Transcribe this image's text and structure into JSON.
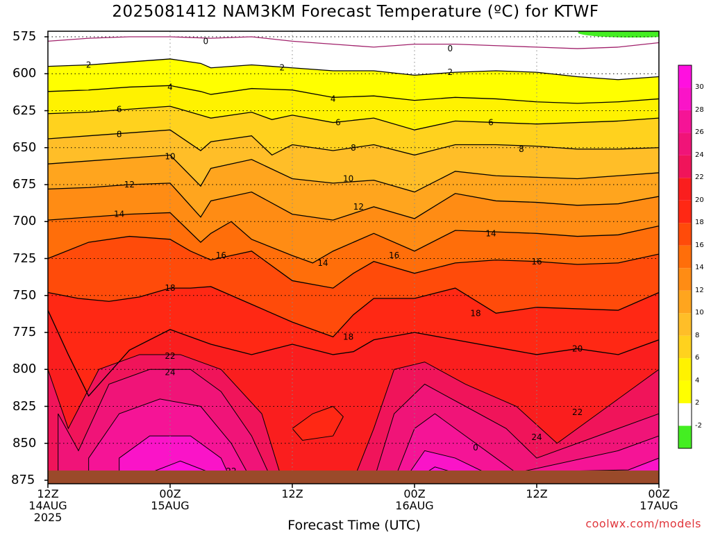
{
  "title": "2025081412 NAM3KM Forecast Temperature (ºC) for KTWF",
  "credit": "coolwx.com/models",
  "chart_data": {
    "type": "heatmap",
    "title": "2025081412 NAM3KM Forecast Temperature (ºC) for KTWF",
    "xlabel": "Forecast Time (UTC)",
    "ylabel": "",
    "y_scale": "pressure (hPa), inverted",
    "ylim": [
      875,
      570
    ],
    "xlim_hours": [
      0,
      60
    ],
    "grid": true,
    "y_ticks": [
      "575",
      "600",
      "625",
      "650",
      "675",
      "700",
      "725",
      "750",
      "775",
      "800",
      "825",
      "850",
      "875"
    ],
    "x_ticks": [
      {
        "hour": 0,
        "lines": [
          "12Z",
          "14AUG",
          "2025"
        ]
      },
      {
        "hour": 12,
        "lines": [
          "00Z",
          "15AUG"
        ]
      },
      {
        "hour": 24,
        "lines": [
          "12Z"
        ]
      },
      {
        "hour": 36,
        "lines": [
          "00Z",
          "16AUG"
        ]
      },
      {
        "hour": 48,
        "lines": [
          "12Z"
        ]
      },
      {
        "hour": 60,
        "lines": [
          "00Z",
          "17AUG"
        ]
      }
    ],
    "colorbar": {
      "levels": [
        -2,
        2,
        4,
        6,
        8,
        10,
        12,
        14,
        16,
        18,
        20,
        22,
        24,
        26,
        28,
        30
      ],
      "labels": [
        "-2",
        "2",
        "4",
        "6",
        "8",
        "10",
        "12",
        "14",
        "16",
        "18",
        "20",
        "22",
        "24",
        "26",
        "28",
        "30"
      ],
      "colors": [
        "#44ee22",
        "#ffffff",
        "#ffff00",
        "#fff200",
        "#ffd21e",
        "#ffbe28",
        "#ffa51e",
        "#ff8c14",
        "#ff6e0a",
        "#ff4b0a",
        "#ff2814",
        "#fa1e1e",
        "#f0145a",
        "#f01478",
        "#f51496",
        "#fa14c8",
        "#ff10e0"
      ]
    },
    "contour_levels": [
      0,
      2,
      4,
      6,
      8,
      10,
      12,
      14,
      16,
      18,
      20,
      22,
      24
    ],
    "contours": [
      {
        "level": 0,
        "hours": [
          0,
          4,
          8,
          12,
          16,
          20,
          24,
          28,
          32,
          36,
          40,
          44,
          48,
          52,
          56,
          60
        ],
        "pressure": [
          578,
          576,
          575,
          575,
          576,
          575,
          578,
          580,
          582,
          580,
          580,
          581,
          582,
          583,
          582,
          579
        ]
      },
      {
        "level": 2,
        "hours": [
          0,
          4,
          8,
          12,
          15,
          16,
          20,
          24,
          28,
          32,
          36,
          40,
          44,
          48,
          52,
          56,
          60
        ],
        "pressure": [
          595,
          594,
          592,
          590,
          593,
          596,
          594,
          596,
          598,
          598,
          601,
          599,
          598,
          599,
          602,
          604,
          602
        ]
      },
      {
        "level": 4,
        "hours": [
          0,
          4,
          8,
          12,
          15,
          16,
          20,
          24,
          28,
          32,
          36,
          40,
          44,
          48,
          52,
          56,
          60
        ],
        "pressure": [
          612,
          611,
          609,
          608,
          612,
          614,
          610,
          611,
          616,
          615,
          618,
          616,
          617,
          619,
          620,
          619,
          617
        ]
      },
      {
        "level": 6,
        "hours": [
          0,
          4,
          8,
          12,
          15,
          16,
          20,
          22,
          24,
          28,
          32,
          36,
          40,
          44,
          48,
          52,
          56,
          60
        ],
        "pressure": [
          627,
          626,
          624,
          622,
          628,
          630,
          626,
          631,
          628,
          633,
          630,
          638,
          632,
          633,
          634,
          633,
          632,
          630
        ]
      },
      {
        "level": 8,
        "hours": [
          0,
          4,
          8,
          12,
          15,
          16,
          20,
          22,
          24,
          28,
          32,
          36,
          40,
          44,
          48,
          52,
          56,
          60
        ],
        "pressure": [
          644,
          642,
          640,
          638,
          652,
          646,
          642,
          655,
          648,
          652,
          648,
          655,
          648,
          648,
          649,
          651,
          651,
          650
        ]
      },
      {
        "level": 10,
        "hours": [
          0,
          4,
          8,
          12,
          15,
          16,
          20,
          24,
          28,
          32,
          36,
          40,
          44,
          48,
          52,
          56,
          60
        ],
        "pressure": [
          661,
          659,
          657,
          655,
          676,
          664,
          658,
          671,
          674,
          672,
          680,
          666,
          669,
          670,
          671,
          669,
          667
        ]
      },
      {
        "level": 12,
        "hours": [
          0,
          4,
          8,
          12,
          15,
          16,
          20,
          24,
          28,
          32,
          36,
          40,
          44,
          48,
          52,
          56,
          60
        ],
        "pressure": [
          678,
          677,
          675,
          674,
          697,
          686,
          680,
          695,
          699,
          690,
          698,
          681,
          686,
          687,
          689,
          688,
          683
        ]
      },
      {
        "level": 14,
        "hours": [
          0,
          4,
          8,
          12,
          15,
          16,
          18,
          20,
          24,
          26,
          28,
          32,
          36,
          40,
          44,
          48,
          52,
          56,
          60
        ],
        "pressure": [
          699,
          697,
          695,
          694,
          714,
          708,
          700,
          712,
          723,
          728,
          720,
          708,
          720,
          706,
          707,
          708,
          710,
          709,
          703
        ]
      },
      {
        "level": 16,
        "hours": [
          0,
          4,
          8,
          12,
          14,
          16,
          20,
          24,
          28,
          30,
          32,
          36,
          40,
          44,
          48,
          52,
          56,
          60
        ],
        "pressure": [
          725,
          714,
          710,
          712,
          720,
          726,
          720,
          740,
          745,
          735,
          727,
          735,
          728,
          726,
          727,
          729,
          728,
          722
        ]
      },
      {
        "level": 18,
        "hours": [
          0,
          3,
          6,
          9,
          12,
          14,
          16,
          20,
          24,
          28,
          30,
          32,
          36,
          40,
          44,
          48,
          52,
          56,
          60
        ],
        "pressure": [
          748,
          752,
          754,
          751,
          745,
          745,
          744,
          756,
          768,
          778,
          763,
          752,
          752,
          745,
          762,
          758,
          759,
          760,
          748
        ]
      },
      {
        "level": 20,
        "hours": [
          0,
          2,
          4,
          8,
          12,
          16,
          20,
          24,
          28,
          30,
          32,
          36,
          40,
          44,
          48,
          52,
          56,
          60
        ],
        "pressure": [
          760,
          790,
          818,
          787,
          773,
          783,
          790,
          783,
          790,
          788,
          780,
          775,
          780,
          785,
          790,
          786,
          790,
          780
        ]
      }
    ],
    "contour_labels": [
      {
        "text": "0",
        "hour": 15.5,
        "pressure": 578
      },
      {
        "text": "0",
        "hour": 39.5,
        "pressure": 583
      },
      {
        "text": "2",
        "hour": 4,
        "pressure": 594
      },
      {
        "text": "2",
        "hour": 23,
        "pressure": 596
      },
      {
        "text": "2",
        "hour": 39.5,
        "pressure": 599
      },
      {
        "text": "4",
        "hour": 12,
        "pressure": 609
      },
      {
        "text": "4",
        "hour": 28,
        "pressure": 617
      },
      {
        "text": "6",
        "hour": 7,
        "pressure": 624
      },
      {
        "text": "6",
        "hour": 28.5,
        "pressure": 633
      },
      {
        "text": "6",
        "hour": 43.5,
        "pressure": 633
      },
      {
        "text": "8",
        "hour": 7,
        "pressure": 641
      },
      {
        "text": "8",
        "hour": 30,
        "pressure": 650
      },
      {
        "text": "8",
        "hour": 46.5,
        "pressure": 651
      },
      {
        "text": "10",
        "hour": 12,
        "pressure": 656
      },
      {
        "text": "10",
        "hour": 29.5,
        "pressure": 671
      },
      {
        "text": "12",
        "hour": 8,
        "pressure": 675
      },
      {
        "text": "12",
        "hour": 30.5,
        "pressure": 690
      },
      {
        "text": "14",
        "hour": 7,
        "pressure": 695
      },
      {
        "text": "14",
        "hour": 43.5,
        "pressure": 708
      },
      {
        "text": "14",
        "hour": 27,
        "pressure": 728
      },
      {
        "text": "16",
        "hour": 17,
        "pressure": 723
      },
      {
        "text": "16",
        "hour": 34,
        "pressure": 723
      },
      {
        "text": "16",
        "hour": 48,
        "pressure": 727
      },
      {
        "text": "18",
        "hour": 12,
        "pressure": 745
      },
      {
        "text": "18",
        "hour": 42,
        "pressure": 762
      },
      {
        "text": "18",
        "hour": 29.5,
        "pressure": 778
      },
      {
        "text": "20",
        "hour": 52,
        "pressure": 786
      },
      {
        "text": "22",
        "hour": 12,
        "pressure": 791
      },
      {
        "text": "22",
        "hour": 52,
        "pressure": 829
      },
      {
        "text": "22",
        "hour": 18,
        "pressure": 869
      },
      {
        "text": "24",
        "hour": 12,
        "pressure": 802
      },
      {
        "text": "24",
        "hour": 48,
        "pressure": 846
      },
      {
        "text": "0",
        "hour": 42,
        "pressure": 853
      }
    ]
  }
}
